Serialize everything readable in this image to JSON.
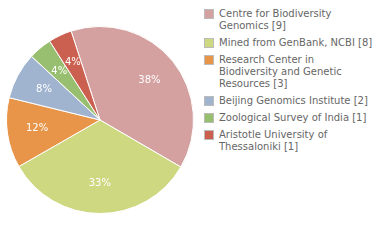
{
  "chart_data": {
    "type": "pie",
    "categories": [
      "Centre for Biodiversity\nGenomics [9]",
      "Mined from GenBank, NCBI [8]",
      "Research Center in\nBiodiversity and Genetic\nResources [3]",
      "Beijing Genomics Institute [2]",
      "Zoological Survey of India [1]",
      "Aristotle University of\nThessaloniki [1]"
    ],
    "values": [
      38,
      33,
      12,
      8,
      4,
      4
    ],
    "value_labels": [
      "38%",
      "33%",
      "12%",
      "8%",
      "4%",
      "4%"
    ],
    "colors": [
      "#d4a0a0",
      "#cdd880",
      "#e8954a",
      "#a0b4d0",
      "#98bf70",
      "#cc6050"
    ],
    "data_labels": true,
    "legend": "right"
  }
}
